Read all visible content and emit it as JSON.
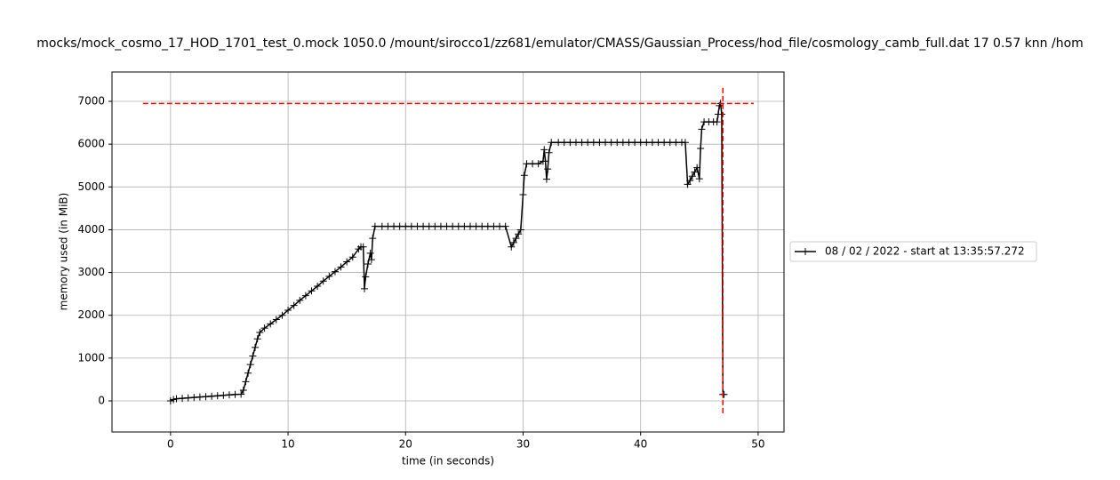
{
  "chart_data": {
    "type": "line",
    "title": "mocks/mock_cosmo_17_HOD_1701_test_0.mock 1050.0 /mount/sirocco1/zz681/emulator/CMASS/Gaussian_Process/hod_file/cosmology_camb_full.dat 17 0.57 knn /hom",
    "x_label": "time (in seconds)",
    "y_label": "memory used (in MiB)",
    "x": [
      0,
      0.25,
      0.5,
      1,
      1.5,
      2,
      2.5,
      3,
      3.5,
      4,
      4.5,
      5,
      5.5,
      6,
      6.2,
      6.4,
      6.6,
      6.8,
      7,
      7.2,
      7.4,
      7.6,
      8,
      8.5,
      9,
      9.5,
      10,
      10.5,
      11,
      11.5,
      12,
      12.5,
      13,
      13.5,
      14,
      14.5,
      15,
      15.5,
      16,
      16.2,
      16.4,
      16.5,
      16.6,
      16.8,
      17,
      17.1,
      17.2,
      17.4,
      18,
      18.5,
      19,
      19.5,
      20,
      20.5,
      21,
      21.5,
      22,
      22.5,
      23,
      23.5,
      24,
      24.5,
      25,
      25.5,
      26,
      26.5,
      27,
      27.5,
      28,
      28.5,
      29,
      29.2,
      29.4,
      29.6,
      29.8,
      30,
      30.1,
      30.3,
      30.8,
      31.3,
      31.7,
      31.8,
      31.9,
      32,
      32.1,
      32.2,
      32.4,
      33,
      33.5,
      34,
      34.5,
      35,
      35.5,
      36,
      36.5,
      37,
      37.5,
      38,
      38.5,
      39,
      39.5,
      40,
      40.5,
      41,
      41.5,
      42,
      42.5,
      43,
      43.5,
      43.8,
      44,
      44.2,
      44.4,
      44.6,
      44.8,
      45,
      45.1,
      45.2,
      45.4,
      45.8,
      46.2,
      46.5,
      46.6,
      46.7,
      46.8,
      46.9,
      47,
      47.1
    ],
    "series": [
      {
        "name": "08 / 02 / 2022 - start at 13:35:57.272",
        "color": "#000000",
        "values": [
          0,
          30,
          50,
          60,
          70,
          80,
          90,
          100,
          110,
          120,
          130,
          140,
          150,
          155,
          250,
          450,
          650,
          850,
          1050,
          1250,
          1450,
          1600,
          1700,
          1800,
          1900,
          2000,
          2120,
          2230,
          2350,
          2460,
          2570,
          2680,
          2800,
          2910,
          3020,
          3130,
          3250,
          3360,
          3550,
          3600,
          3600,
          2620,
          2900,
          3200,
          3450,
          3300,
          3800,
          4080,
          4080,
          4080,
          4080,
          4080,
          4080,
          4080,
          4080,
          4080,
          4080,
          4080,
          4080,
          4080,
          4080,
          4080,
          4080,
          4080,
          4080,
          4080,
          4080,
          4080,
          4080,
          4080,
          3600,
          3700,
          3800,
          3900,
          4000,
          4820,
          5270,
          5540,
          5540,
          5540,
          5600,
          5870,
          5600,
          5180,
          5420,
          5800,
          6040,
          6040,
          6040,
          6040,
          6040,
          6040,
          6040,
          6040,
          6040,
          6040,
          6040,
          6040,
          6040,
          6040,
          6040,
          6040,
          6040,
          6040,
          6040,
          6040,
          6040,
          6040,
          6040,
          6040,
          5060,
          5150,
          5250,
          5350,
          5450,
          5190,
          5900,
          6350,
          6520,
          6520,
          6520,
          6520,
          6700,
          6900,
          6950,
          6700,
          150,
          150
        ]
      }
    ],
    "max_memory": 6950,
    "max_time": 47,
    "max_color": "#ff0000",
    "xlim": [
      -4.98,
      52.2
    ],
    "ylim": [
      -727,
      7686
    ],
    "xticks": [
      0,
      10,
      20,
      30,
      40,
      50
    ],
    "yticks": [
      0,
      1000,
      2000,
      3000,
      4000,
      5000,
      6000,
      7000
    ],
    "grid": true,
    "legend": "center right"
  }
}
